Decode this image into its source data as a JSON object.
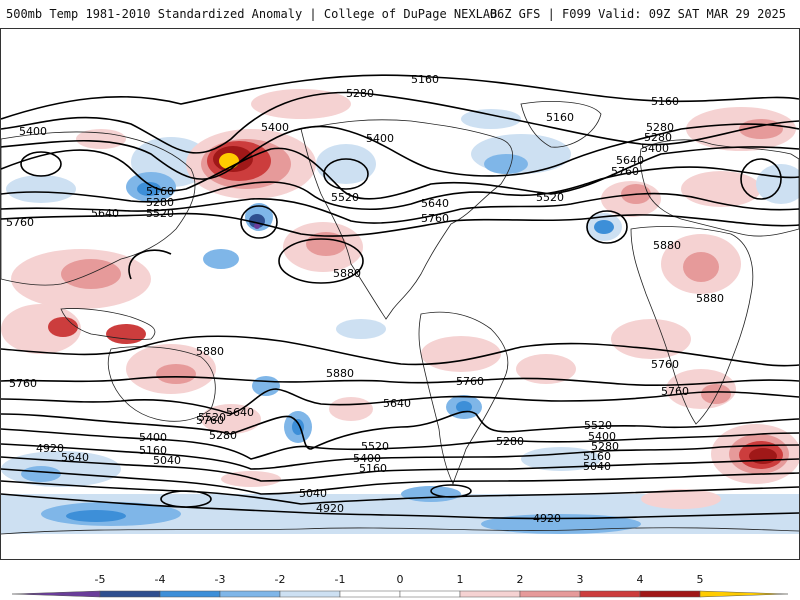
{
  "header": {
    "title_left": "500mb Temp 1981-2010 Standardized Anomaly | College of DuPage NEXLAB",
    "title_right": "06Z GFS | F099 Valid: 09Z SAT MAR 29 2025"
  },
  "map": {
    "contour_labels": [
      "5160",
      "5280",
      "5160",
      "5400",
      "5400",
      "5280",
      "5520",
      "5640",
      "5760",
      "5160",
      "5280",
      "5520",
      "5400",
      "5160",
      "5280",
      "5400",
      "5640",
      "5760",
      "5520",
      "5640",
      "5760",
      "5880",
      "5880",
      "5880",
      "5880",
      "5880",
      "5760",
      "5760",
      "5640",
      "5520",
      "5400",
      "5280",
      "5160",
      "5040",
      "4920",
      "5640",
      "5760",
      "5280",
      "5520",
      "5400",
      "5160",
      "5040",
      "4920",
      "5760",
      "5640",
      "5520",
      "5400",
      "5280",
      "5160",
      "5040",
      "5760",
      "4920"
    ],
    "colors": {
      "neg5": "#6a3d9a",
      "neg4": "#2f4f8f",
      "neg3": "#3d8fd8",
      "neg2": "#7fb6e8",
      "neg1": "#cde0f2",
      "zero": "#ffffff",
      "pos1": "#f5d2d2",
      "pos2": "#e69a9a",
      "pos3": "#cc3d3d",
      "pos4": "#a01818",
      "pos5": "#ffcc00"
    }
  },
  "colorbar": {
    "ticks": [
      "-5",
      "-4",
      "-3",
      "-2",
      "-1",
      "0",
      "1",
      "2",
      "3",
      "4",
      "5"
    ],
    "colors": [
      "#6a3d9a",
      "#2f4f8f",
      "#3d8fd8",
      "#7fb6e8",
      "#cde0f2",
      "#ffffff",
      "#ffffff",
      "#f5d2d2",
      "#e69a9a",
      "#cc3d3d",
      "#a01818",
      "#ffcc00"
    ]
  }
}
